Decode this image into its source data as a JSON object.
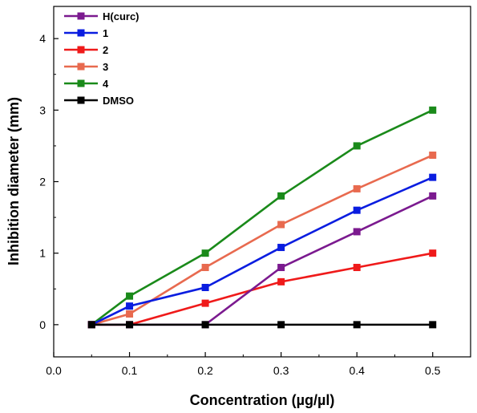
{
  "chart_data": {
    "type": "line",
    "title": "",
    "xlabel": "Concentration (µg/µl)",
    "ylabel": "Inhibition diameter (mm)",
    "xlim": [
      0.0,
      0.55
    ],
    "ylim": [
      -0.45,
      4.45
    ],
    "xticks": [
      "0.0",
      "0.1",
      "0.2",
      "0.3",
      "0.4",
      "0.5"
    ],
    "yticks": [
      "0",
      "1",
      "2",
      "3",
      "4"
    ],
    "grid": false,
    "legend_position": "top-left",
    "x": [
      0.05,
      0.1,
      0.2,
      0.3,
      0.4,
      0.5
    ],
    "series": [
      {
        "name": "H(curc)",
        "color": "#7b1a8f",
        "values": [
          0,
          0,
          0,
          0.8,
          1.3,
          1.8
        ]
      },
      {
        "name": "1",
        "color": "#0a1de0",
        "values": [
          0,
          0.26,
          0.52,
          1.08,
          1.6,
          2.06
        ]
      },
      {
        "name": "2",
        "color": "#ef1a1a",
        "values": [
          0,
          0,
          0.3,
          0.6,
          0.8,
          1.0
        ]
      },
      {
        "name": "3",
        "color": "#e86a4f",
        "values": [
          0,
          0.15,
          0.8,
          1.4,
          1.9,
          2.37
        ]
      },
      {
        "name": "4",
        "color": "#1a8a1a",
        "values": [
          0,
          0.4,
          1.0,
          1.8,
          2.5,
          3.0
        ]
      },
      {
        "name": "DMSO",
        "color": "#000000",
        "values": [
          0,
          0,
          0,
          0,
          0,
          0
        ]
      }
    ]
  }
}
